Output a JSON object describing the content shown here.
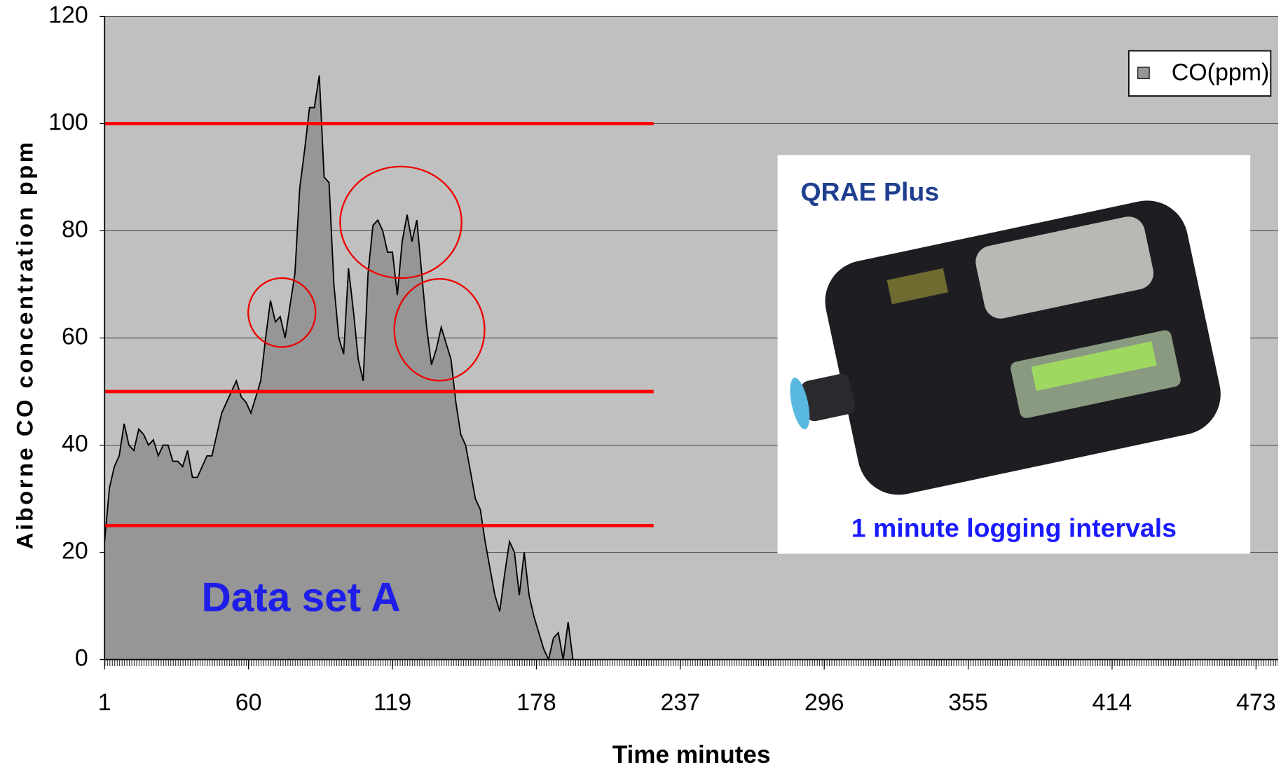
{
  "chart_data": {
    "type": "area",
    "y_label": "Aiborne CO concentration ppm",
    "x_label": "Time minutes",
    "annotation": "Data set A",
    "inset_title": "QRAE Plus",
    "inset_caption": "1 minute logging intervals",
    "xlim": [
      1,
      473
    ],
    "xticks": [
      1,
      60,
      119,
      178,
      237,
      296,
      355,
      414,
      473
    ],
    "ylim": [
      0,
      120
    ],
    "yticks": [
      0,
      20,
      40,
      60,
      80,
      100,
      120
    ],
    "grid": true,
    "legend": "top-right",
    "reference_lines": [
      100,
      50,
      25
    ],
    "reference_color": "#ff0000",
    "x": [
      1,
      3,
      5,
      7,
      9,
      11,
      13,
      15,
      17,
      19,
      21,
      23,
      25,
      27,
      29,
      31,
      33,
      35,
      37,
      39,
      41,
      43,
      45,
      47,
      49,
      51,
      53,
      55,
      57,
      59,
      61,
      63,
      65,
      67,
      69,
      71,
      73,
      75,
      77,
      79,
      81,
      83,
      85,
      87,
      89,
      91,
      93,
      95,
      97,
      99,
      101,
      103,
      105,
      107,
      109,
      111,
      113,
      115,
      117,
      119,
      121,
      123,
      125,
      127,
      129,
      131,
      133,
      135,
      137,
      139,
      141,
      143,
      145,
      147,
      149,
      151,
      153,
      155,
      157,
      159,
      161,
      163,
      165,
      167,
      169,
      171,
      173,
      175,
      177,
      179,
      181,
      183,
      185,
      187,
      189,
      191,
      193
    ],
    "series": [
      {
        "name": "CO(ppm)",
        "color": "#969696",
        "values": [
          22,
          32,
          36,
          38,
          44,
          40,
          39,
          43,
          42,
          40,
          41,
          38,
          40,
          40,
          37,
          37,
          36,
          39,
          34,
          34,
          36,
          38,
          38,
          42,
          46,
          48,
          50,
          52,
          49,
          48,
          46,
          49,
          52,
          60,
          67,
          63,
          64,
          60,
          66,
          72,
          88,
          95,
          103,
          103,
          109,
          90,
          89,
          70,
          60,
          57,
          73,
          65,
          56,
          52,
          72,
          81,
          82,
          80,
          76,
          76,
          68,
          78,
          83,
          78,
          82,
          72,
          62,
          55,
          58,
          62,
          59,
          56,
          48,
          42,
          40,
          35,
          30,
          28,
          22,
          17,
          12,
          9,
          16,
          22,
          20,
          12,
          20,
          12,
          8,
          5,
          2,
          0,
          4,
          5,
          0,
          7,
          0
        ]
      }
    ]
  }
}
